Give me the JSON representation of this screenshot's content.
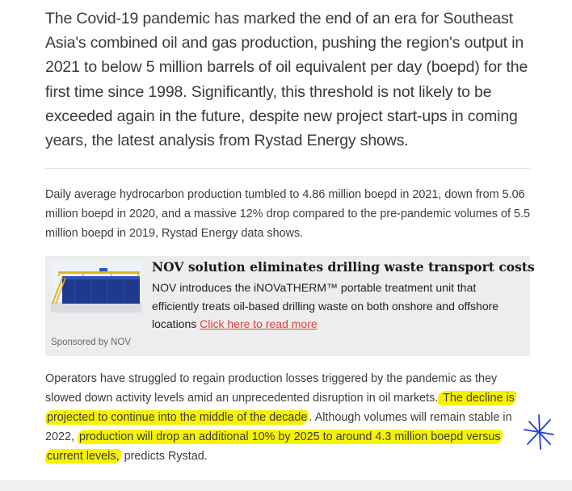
{
  "article": {
    "lead": "The Covid-19 pandemic has marked the end of an era for Southeast Asia's combined oil and gas production, pushing the region's output in 2021 to below 5 million barrels of oil equivalent per day (boepd) for the first time since 1998. Significantly, this threshold is not likely to be exceeded again in the future, despite new project start-ups in coming years, the latest analysis from Rystad Energy shows.",
    "paragraph1": "Daily average hydrocarbon production tumbled to 4.86 million boepd in 2021, down from 5.06 million boepd in 2020, and a massive 12% drop compared to the pre-pandemic volumes of 5.5 million boepd in 2019, Rystad Energy data shows.",
    "paragraph2": {
      "part1": "Operators have struggled to regain production losses triggered by the pandemic as they slowed down activity levels amid an unprecedented disruption in oil markets.",
      "highlight1": " The decline is projected to continue into the middle of the decade",
      "part2": ". Although volumes will remain stable in 2022, ",
      "highlight2": "production will drop an additional 10% by 2025 to around 4.3 million boepd versus current levels,",
      "part3": " predicts Rystad."
    }
  },
  "sponsored": {
    "title": "NOV solution eliminates drilling waste transport costs",
    "body": "NOV introduces the iNOVaTHERM™ portable treatment unit that efficiently treats oil-based drilling waste on both onshore and offshore locations ",
    "link_text": "Click here to read more",
    "sponsor_text": "Sponsored by NOV"
  },
  "colors": {
    "highlight": "#f7f300",
    "link": "#e0403a",
    "annotation_ink": "#1f3be0"
  },
  "icons": {
    "annotation": "hand-drawn-asterisk-icon"
  }
}
